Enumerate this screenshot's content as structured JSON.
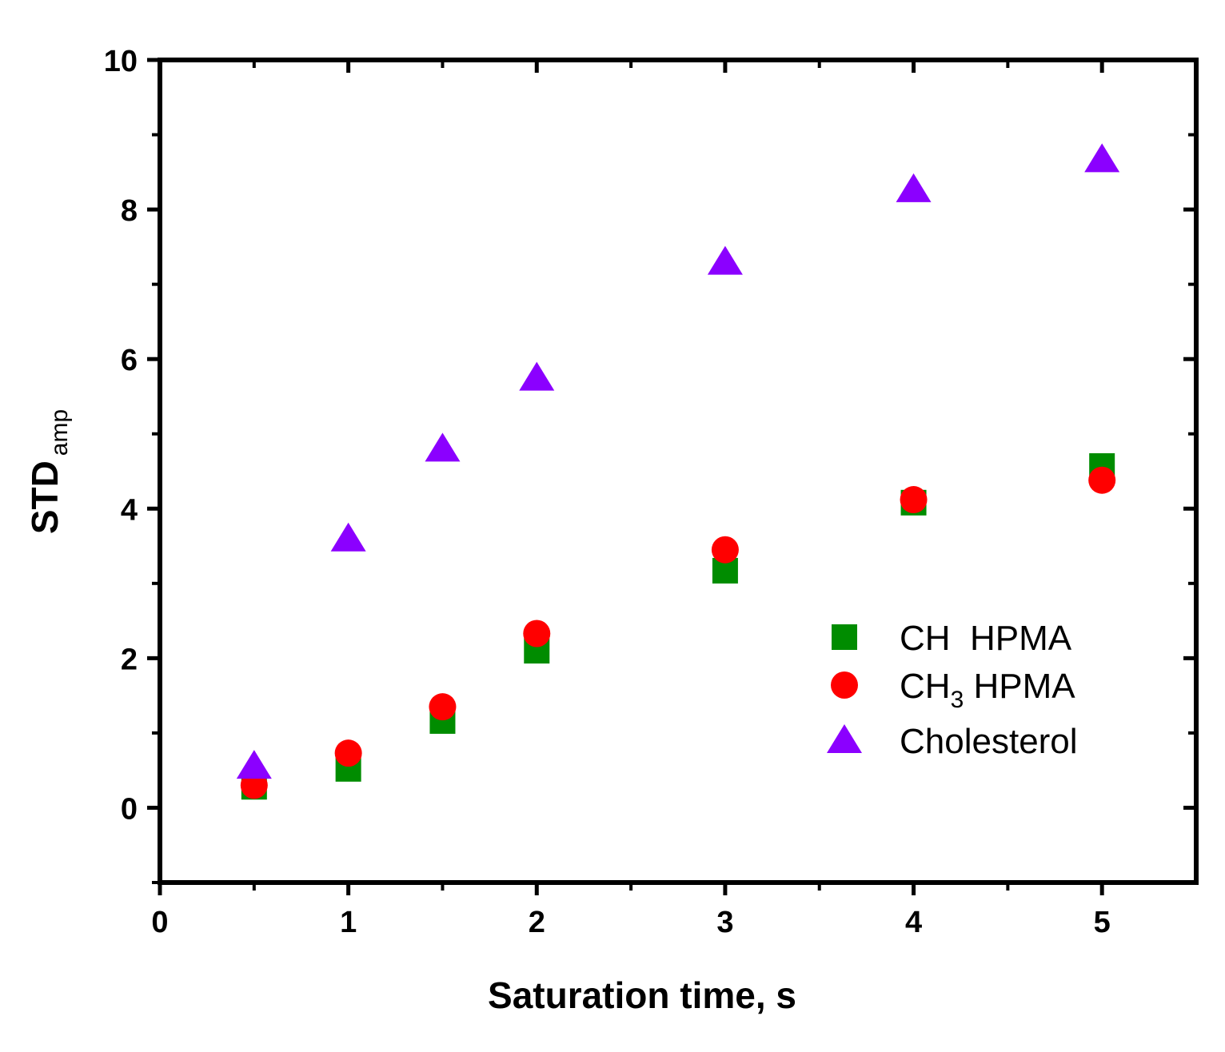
{
  "chart_data": {
    "type": "scatter",
    "title": "",
    "xlabel": "Saturation time, s",
    "ylabel": {
      "main": "STD",
      "sub": "amp"
    },
    "xlim": [
      0,
      5.5
    ],
    "ylim": [
      -1,
      10
    ],
    "x_ticks": [
      0,
      1,
      2,
      3,
      4,
      5
    ],
    "x_tick_labels": [
      "0",
      "1",
      "2",
      "3",
      "4",
      "5"
    ],
    "y_ticks": [
      0,
      2,
      4,
      6,
      8,
      10
    ],
    "y_tick_labels": [
      "0",
      "2",
      "4",
      "6",
      "8",
      "10"
    ],
    "grid": false,
    "legend_position": "right-center",
    "series": [
      {
        "name": "CH  HPMA",
        "label_main": "CH  HPMA",
        "label_sub": "",
        "marker": "square",
        "color": "#008c00",
        "x": [
          0.5,
          1,
          1.5,
          2,
          3,
          4,
          5
        ],
        "y": [
          0.28,
          0.52,
          1.16,
          2.1,
          3.17,
          4.08,
          4.57
        ]
      },
      {
        "name": "CH3 HPMA",
        "label_main": "CH",
        "label_sub": "3",
        "label_rest": " HPMA",
        "marker": "circle",
        "color": "#ff0000",
        "x": [
          0.5,
          1,
          1.5,
          2,
          3,
          4,
          5
        ],
        "y": [
          0.3,
          0.73,
          1.35,
          2.33,
          3.45,
          4.12,
          4.38
        ]
      },
      {
        "name": "Cholesterol",
        "label_main": "Cholesterol",
        "label_sub": "",
        "marker": "triangle",
        "color": "#8b00ff",
        "x": [
          0.5,
          1,
          1.5,
          2,
          3,
          4,
          5
        ],
        "y": [
          0.56,
          3.6,
          4.8,
          5.75,
          7.3,
          8.27,
          8.67
        ]
      }
    ]
  }
}
